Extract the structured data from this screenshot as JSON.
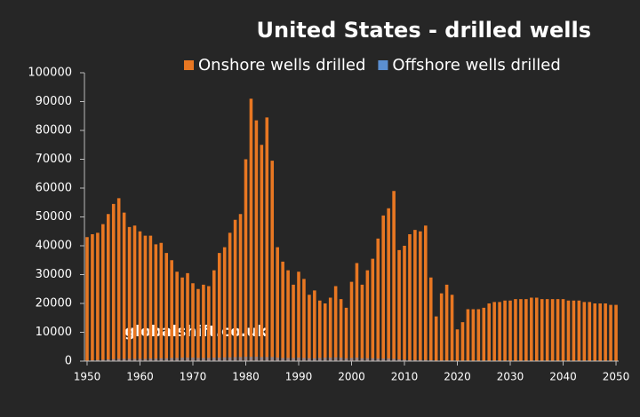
{
  "chart_data": {
    "type": "bar",
    "title": "United States - drilled wells",
    "watermark": "globalshift.co.uk",
    "x": [
      1950,
      1951,
      1952,
      1953,
      1954,
      1955,
      1956,
      1957,
      1958,
      1959,
      1960,
      1961,
      1962,
      1963,
      1964,
      1965,
      1966,
      1967,
      1968,
      1969,
      1970,
      1971,
      1972,
      1973,
      1974,
      1975,
      1976,
      1977,
      1978,
      1979,
      1980,
      1981,
      1982,
      1983,
      1984,
      1985,
      1986,
      1987,
      1988,
      1989,
      1990,
      1991,
      1992,
      1993,
      1994,
      1995,
      1996,
      1997,
      1998,
      1999,
      2000,
      2001,
      2002,
      2003,
      2004,
      2005,
      2006,
      2007,
      2008,
      2009,
      2010,
      2011,
      2012,
      2013,
      2014,
      2015,
      2016,
      2017,
      2018,
      2019,
      2020,
      2021,
      2022,
      2023,
      2024,
      2025,
      2026,
      2027,
      2028,
      2029,
      2030,
      2031,
      2032,
      2033,
      2034,
      2035,
      2036,
      2037,
      2038,
      2039,
      2040,
      2041,
      2042,
      2043,
      2044,
      2045,
      2046,
      2047,
      2048,
      2049,
      2050
    ],
    "series": [
      {
        "name": "Onshore wells drilled",
        "color": "#e87722",
        "values": [
          43000,
          44000,
          44500,
          47500,
          51000,
          54500,
          56500,
          51500,
          46500,
          47000,
          45000,
          43500,
          43500,
          40500,
          41000,
          37500,
          35000,
          31000,
          29000,
          30500,
          27000,
          25000,
          26500,
          26000,
          31500,
          37500,
          39500,
          44500,
          49000,
          51000,
          70000,
          91000,
          83500,
          75000,
          84500,
          69500,
          39500,
          34500,
          31500,
          26500,
          31000,
          28500,
          23000,
          24500,
          21000,
          20000,
          22000,
          26000,
          21500,
          18500,
          27500,
          34000,
          26500,
          31500,
          35500,
          42500,
          50500,
          53000,
          59000,
          38500,
          40000,
          44000,
          45500,
          45000,
          47000,
          29000,
          15500,
          23500,
          26500,
          23000,
          11000,
          13500,
          18000,
          18000,
          18000,
          18500,
          20000,
          20500,
          20500,
          21000,
          21000,
          21500,
          21500,
          21500,
          22000,
          22000,
          21500,
          21500,
          21500,
          21500,
          21500,
          21000,
          21000,
          21000,
          20500,
          20500,
          20000,
          20000,
          20000,
          19500,
          19500
        ]
      },
      {
        "name": "Offshore wells drilled",
        "color": "#5b8fd1",
        "values": [
          200,
          300,
          400,
          500,
          600,
          700,
          800,
          800,
          800,
          800,
          800,
          800,
          900,
          900,
          1000,
          1000,
          1100,
          1100,
          1200,
          1200,
          1200,
          1100,
          1100,
          1100,
          1200,
          1200,
          1300,
          1300,
          1400,
          1400,
          1500,
          1500,
          1500,
          1400,
          1400,
          1400,
          1200,
          1100,
          1100,
          1100,
          1200,
          1100,
          1000,
          1000,
          1100,
          1200,
          1200,
          1300,
          1200,
          1000,
          1100,
          1200,
          1000,
          1000,
          1000,
          900,
          900,
          900,
          800,
          600,
          500,
          400,
          400,
          400,
          400,
          300,
          200,
          200,
          200,
          200,
          100,
          100,
          100,
          100,
          100,
          100,
          100,
          100,
          100,
          100,
          100,
          100,
          100,
          100,
          100,
          100,
          100,
          100,
          100,
          100,
          100,
          100,
          100,
          100,
          100,
          100,
          100,
          100,
          100,
          100,
          100
        ]
      }
    ],
    "xlim": [
      1949.5,
      2050.5
    ],
    "xticks": [
      1950,
      1960,
      1970,
      1980,
      1990,
      2000,
      2010,
      2020,
      2030,
      2040,
      2050
    ],
    "ylim": [
      0,
      100000
    ],
    "yticks": [
      0,
      10000,
      20000,
      30000,
      40000,
      50000,
      60000,
      70000,
      80000,
      90000,
      100000
    ]
  }
}
